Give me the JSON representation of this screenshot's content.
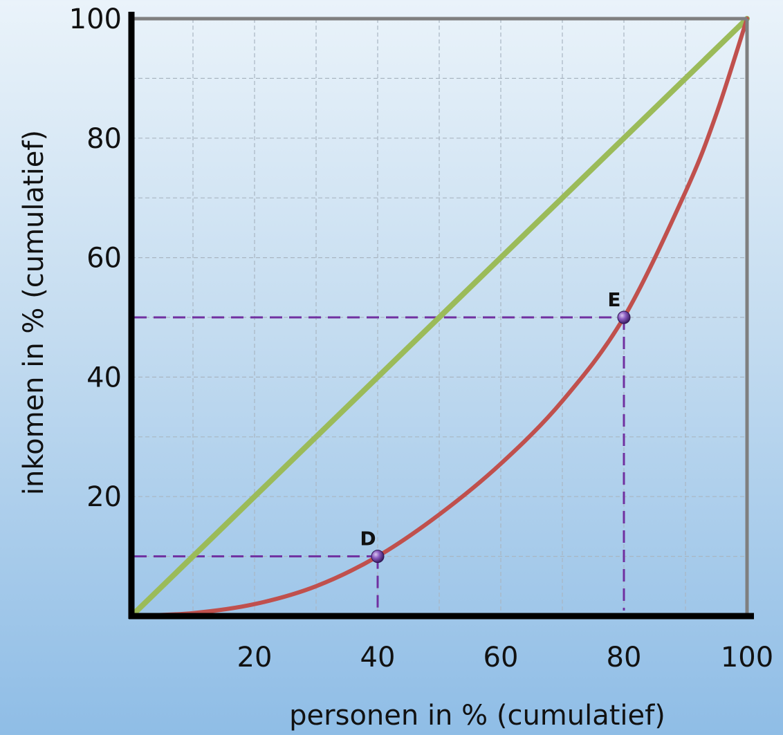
{
  "chart_data": {
    "type": "line",
    "xlabel": "personen in % (cumulatief)",
    "ylabel": "inkomen in % (cumulatief)",
    "xlim": [
      0,
      100
    ],
    "ylim": [
      0,
      100
    ],
    "x_ticks": [
      20,
      40,
      60,
      80,
      100
    ],
    "y_ticks": [
      20,
      40,
      60,
      80,
      100
    ],
    "grid": true,
    "grid_step": 10,
    "series": [
      {
        "color": "#9bbb59",
        "x": [
          0,
          100
        ],
        "y": [
          0,
          100
        ]
      },
      {
        "color": "#c0504d",
        "x": [
          0,
          10,
          20,
          30,
          40,
          50,
          60,
          70,
          80,
          90,
          95,
          100
        ],
        "y": [
          0,
          0.5,
          2,
          5,
          10,
          17,
          25.5,
          36,
          50,
          71,
          84,
          100
        ]
      }
    ],
    "points": [
      {
        "label": "D",
        "x": 40,
        "y": 10
      },
      {
        "label": "E",
        "x": 80,
        "y": 50
      }
    ],
    "guide_color": "#7030a0",
    "point_color": "#7a4aa8"
  }
}
